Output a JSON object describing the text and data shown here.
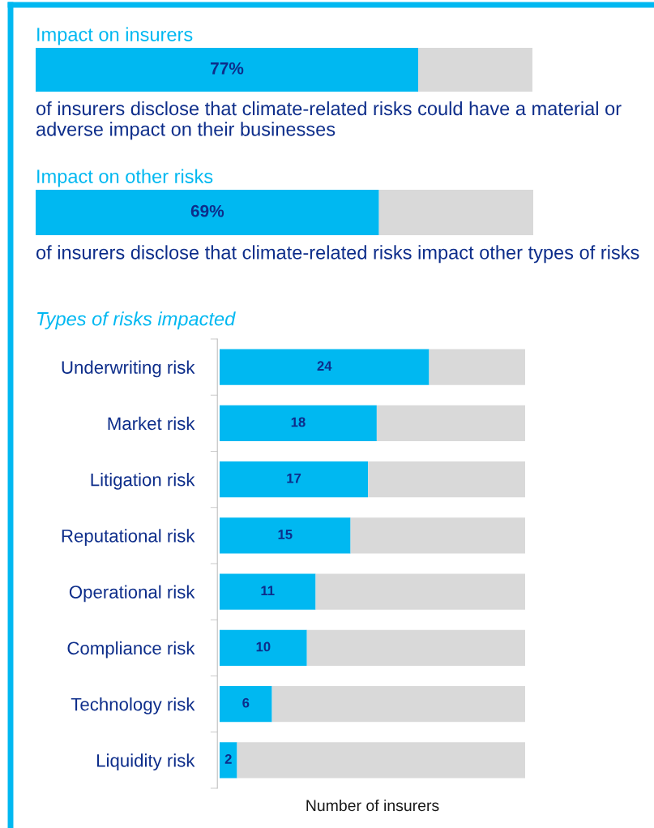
{
  "chart_data": [
    {
      "type": "bar",
      "orientation": "horizontal",
      "stacked": true,
      "title": "Impact on insurers",
      "categories": [
        null
      ],
      "xlim": [
        0,
        100
      ],
      "tick_labels": false,
      "series": [
        {
          "color": "#00b8f1",
          "values": [
            77
          ],
          "value_labels": [
            "77%"
          ]
        },
        {
          "color": "#d9d9d9",
          "values": [
            23
          ]
        }
      ],
      "annotations": [
        "of insurers disclose that climate-related risks could have a material or adverse impact on their businesses"
      ]
    },
    {
      "type": "bar",
      "orientation": "horizontal",
      "stacked": true,
      "title": "Impact on other risks",
      "categories": [
        null
      ],
      "xlim": [
        0,
        100
      ],
      "tick_labels": false,
      "series": [
        {
          "color": "#00b8f1",
          "values": [
            69
          ],
          "value_labels": [
            "69%"
          ]
        },
        {
          "color": "#d9d9d9",
          "values": [
            31
          ]
        }
      ],
      "annotations": [
        "of insurers disclose that climate-related risks impact other types of risks"
      ]
    },
    {
      "type": "bar",
      "orientation": "horizontal",
      "stacked": true,
      "title": "Types of risks impacted",
      "xlabel": "Number of insurers",
      "xlim": [
        0,
        35
      ],
      "tick_labels": "y",
      "categories": [
        "Underwriting risk",
        "Market risk",
        "Litigation risk",
        "Reputational risk",
        "Operational risk",
        "Compliance risk",
        "Technology risk",
        "Liquidity risk"
      ],
      "series": [
        {
          "color": "#00b8f1",
          "values": [
            24,
            18,
            17,
            15,
            11,
            10,
            6,
            2
          ],
          "value_labels": [
            "24",
            "18",
            "17",
            "15",
            "11",
            "10",
            "6",
            "2"
          ]
        },
        {
          "color": "#d9d9d9",
          "values": [
            11,
            17,
            18,
            20,
            24,
            25,
            29,
            33
          ]
        }
      ]
    }
  ]
}
